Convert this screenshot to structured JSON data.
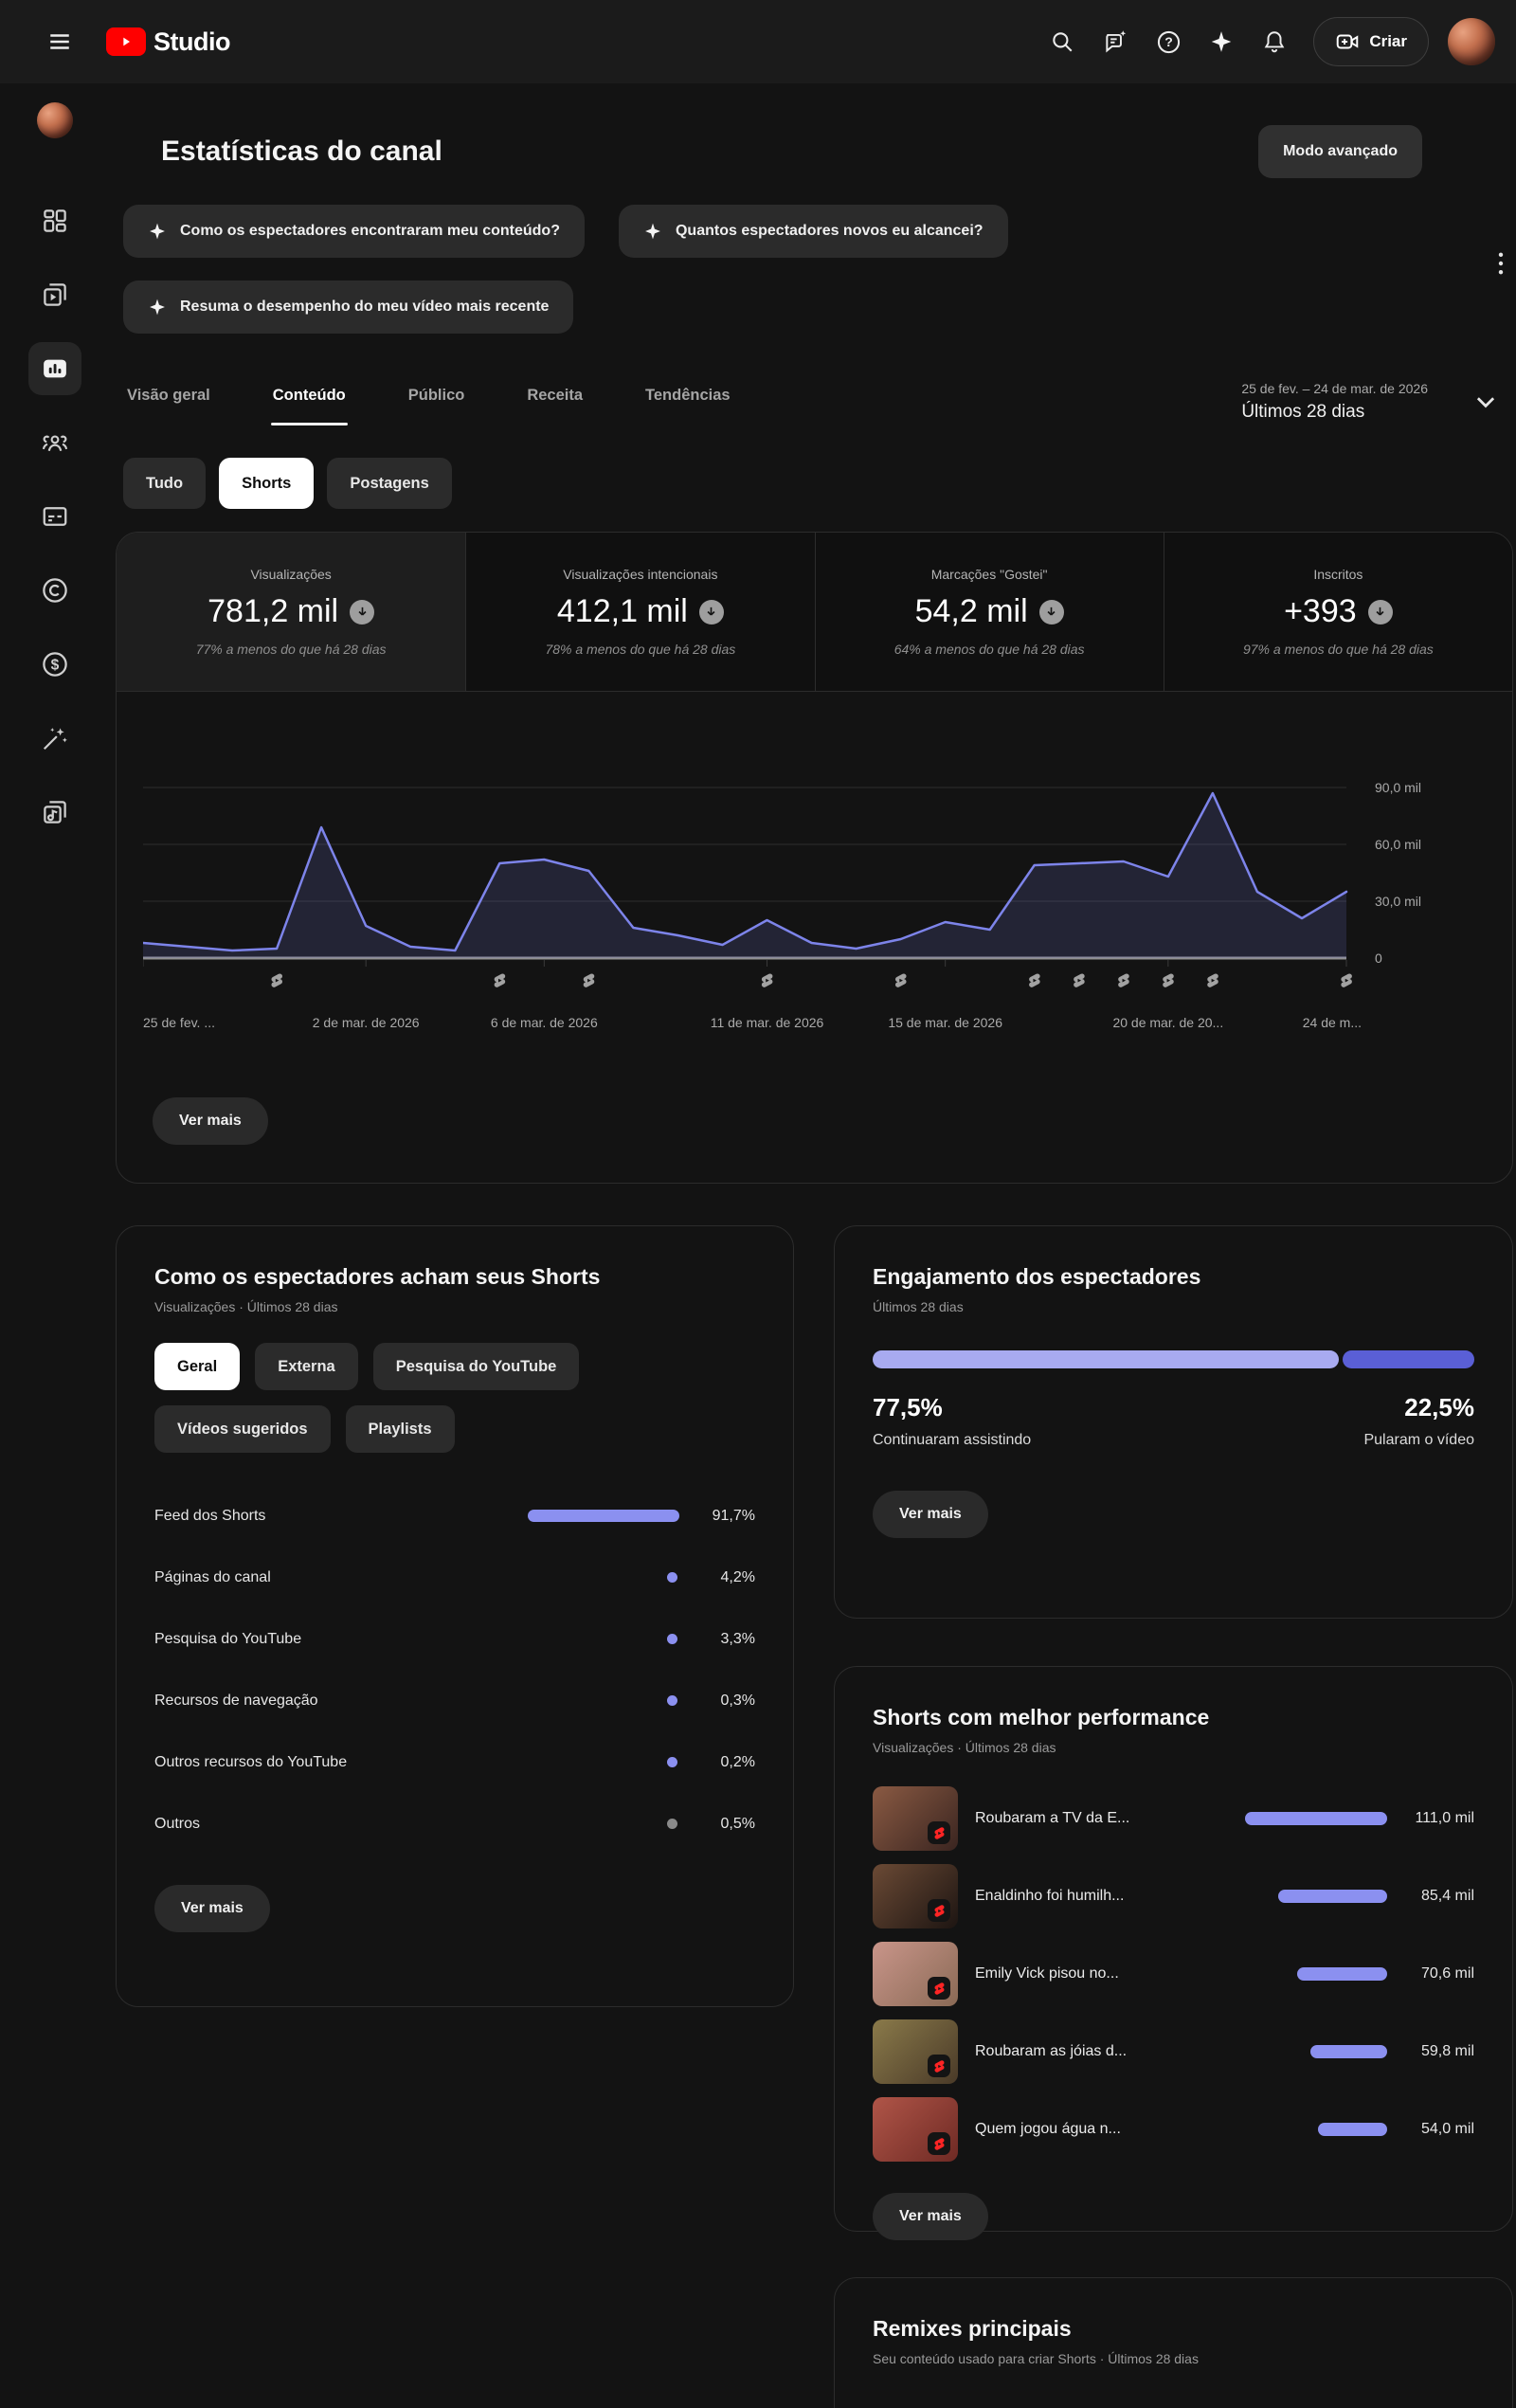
{
  "topbar": {
    "product": "Studio",
    "create_label": "Criar",
    "icons": [
      "menu-icon",
      "youtube-logo-icon",
      "search-icon",
      "feedback-icon",
      "help-icon",
      "ai-sparkle-icon",
      "notifications-icon",
      "create-video-icon",
      "account-avatar"
    ]
  },
  "sidebar": {
    "icons": [
      "channel-avatar",
      "dashboard-icon",
      "content-icon",
      "analytics-icon",
      "community-icon",
      "subtitles-icon",
      "copyright-icon",
      "monetization-icon",
      "customization-icon",
      "audio-library-icon"
    ],
    "active": "analytics"
  },
  "page": {
    "title": "Estatísticas do canal",
    "advanced_mode": "Modo avançado"
  },
  "labels": {
    "see_more": "Ver mais"
  },
  "ai_chips": [
    {
      "label": "Como os espectadores encontraram meu conteúdo?",
      "row": 1
    },
    {
      "label": "Quantos espectadores novos eu alcancei?",
      "row": 1
    },
    {
      "label": "Resuma o desempenho do meu vídeo mais recente",
      "row": 2
    }
  ],
  "tabs": [
    {
      "id": "visao-geral",
      "label": "Visão geral",
      "active": false
    },
    {
      "id": "conteudo",
      "label": "Conteúdo",
      "active": true
    },
    {
      "id": "publico",
      "label": "Público",
      "active": false
    },
    {
      "id": "receita",
      "label": "Receita",
      "active": false
    },
    {
      "id": "tendencias",
      "label": "Tendências",
      "active": false
    }
  ],
  "date_range": {
    "range": "25 de fev. – 24 de mar. de 2026",
    "preset": "Últimos 28 dias"
  },
  "content_filters": [
    {
      "id": "tudo",
      "label": "Tudo",
      "active": false
    },
    {
      "id": "shorts",
      "label": "Shorts",
      "active": true
    },
    {
      "id": "postagens",
      "label": "Postagens",
      "active": false
    }
  ],
  "metrics": [
    {
      "label": "Visualizações",
      "value": "781,2 mil",
      "delta": "77% a menos do que há 28 dias",
      "selected": true
    },
    {
      "label": "Visualizações intencionais",
      "value": "412,1 mil",
      "delta": "78% a menos do que há 28 dias",
      "selected": false
    },
    {
      "label": "Marcações \"Gostei\"",
      "value": "54,2 mil",
      "delta": "64% a menos do que há 28 dias",
      "selected": false
    },
    {
      "label": "Inscritos",
      "value": "+393",
      "delta": "97% a menos do que há 28 dias",
      "selected": false
    }
  ],
  "chart_data": {
    "type": "area",
    "metric": "Visualizações",
    "unit": "mil",
    "ylim": [
      0,
      118
    ],
    "grid": true,
    "values": [
      8,
      6,
      4,
      5,
      69,
      17,
      6,
      4,
      50,
      52,
      46,
      16,
      12,
      7,
      20,
      8,
      5,
      10,
      19,
      15,
      49,
      50,
      51,
      43,
      87,
      35,
      21,
      35
    ],
    "y_ticks": [
      {
        "label": "90,0 mil",
        "value": 90
      },
      {
        "label": "60,0 mil",
        "value": 60
      },
      {
        "label": "30,0 mil",
        "value": 30
      },
      {
        "label": "0",
        "value": 0
      }
    ],
    "x_ticks": [
      {
        "label": "25 de fev. ...",
        "index": 0
      },
      {
        "label": "2 de mar. de 2026",
        "index": 5
      },
      {
        "label": "6 de mar. de 2026",
        "index": 9
      },
      {
        "label": "11 de mar. de 2026",
        "index": 14
      },
      {
        "label": "15 de mar. de 2026",
        "index": 18
      },
      {
        "label": "20 de mar. de 20...",
        "index": 23
      },
      {
        "label": "24 de m...",
        "index": 27
      }
    ],
    "upload_marker_indices": [
      3,
      8,
      10,
      14,
      17,
      20,
      21,
      22,
      23,
      24,
      27
    ]
  },
  "discovery": {
    "title": "Como os espectadores acham seus Shorts",
    "subtitle": "Visualizações · Últimos 28 dias",
    "filters": [
      {
        "id": "geral",
        "label": "Geral",
        "active": true,
        "row": 1
      },
      {
        "id": "externa",
        "label": "Externa",
        "active": false,
        "row": 1
      },
      {
        "id": "pesquisa-youtube",
        "label": "Pesquisa do YouTube",
        "active": false,
        "row": 1
      },
      {
        "id": "videos-sugeridos",
        "label": "Vídeos sugeridos",
        "active": false,
        "row": 2
      },
      {
        "id": "playlists",
        "label": "Playlists",
        "active": false,
        "row": 2
      }
    ],
    "sources": [
      {
        "label": "Feed dos Shorts",
        "pct": "91,7%",
        "value": 91.7,
        "display": "bar",
        "muted": false
      },
      {
        "label": "Páginas do canal",
        "pct": "4,2%",
        "value": 4.2,
        "display": "dot",
        "muted": false
      },
      {
        "label": "Pesquisa do YouTube",
        "pct": "3,3%",
        "value": 3.3,
        "display": "dot",
        "muted": false
      },
      {
        "label": "Recursos de navegação",
        "pct": "0,3%",
        "value": 0.3,
        "display": "dot",
        "muted": false
      },
      {
        "label": "Outros recursos do YouTube",
        "pct": "0,2%",
        "value": 0.2,
        "display": "dot",
        "muted": false
      },
      {
        "label": "Outros",
        "pct": "0,5%",
        "value": 0.5,
        "display": "dot",
        "muted": true
      }
    ]
  },
  "engagement": {
    "title": "Engajamento dos espectadores",
    "subtitle": "Últimos 28 dias",
    "left_pct": "77,5%",
    "left_label": "Continuaram assistindo",
    "left_value": 77.5,
    "right_pct": "22,5%",
    "right_label": "Pularam o vídeo",
    "right_value": 22.5
  },
  "top_shorts": {
    "title": "Shorts com melhor performance",
    "subtitle": "Visualizações · Últimos 28 dias",
    "items": [
      {
        "title": "Roubaram a TV da E...",
        "views": "111,0 mil",
        "views_k": 111.0,
        "thumb_colors": [
          "#8a5a43",
          "#3a2520"
        ]
      },
      {
        "title": "Enaldinho foi humilh...",
        "views": "85,4 mil",
        "views_k": 85.4,
        "thumb_colors": [
          "#6b4a35",
          "#1d1512"
        ]
      },
      {
        "title": "Emily Vick pisou no...",
        "views": "70,6 mil",
        "views_k": 70.6,
        "thumb_colors": [
          "#c9958a",
          "#8a6a55"
        ]
      },
      {
        "title": "Roubaram as jóias d...",
        "views": "59,8 mil",
        "views_k": 59.8,
        "thumb_colors": [
          "#8a7a4a",
          "#4a3a28"
        ]
      },
      {
        "title": "Quem jogou água n...",
        "views": "54,0 mil",
        "views_k": 54.0,
        "thumb_colors": [
          "#b05548",
          "#6e2a24"
        ]
      }
    ]
  },
  "remixes": {
    "title": "Remixes principais",
    "subtitle": "Seu conteúdo usado para criar Shorts · Últimos 28 dias"
  },
  "colors": {
    "accent_line": "#7d84ea",
    "bar_purple": "#8b90f0",
    "engagement_left": "#a8aaf0",
    "engagement_right": "#5a5fd6",
    "shorts_red": "#ff2424",
    "youtube_red": "#ff0000",
    "selected_chip_bg": "#ffffff"
  }
}
